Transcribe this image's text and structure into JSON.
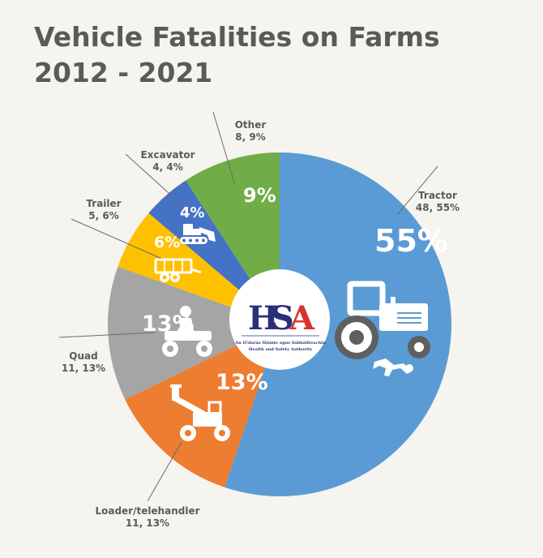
{
  "title_lines": [
    "Vehicle Fatalities on Farms",
    "2012 - 2021"
  ],
  "logo": {
    "text_h": "H",
    "text_s": "S",
    "text_a": "A",
    "line1": "An tÚdarás Sláinte agus Sábháilteachta",
    "line2": "Health and Safety Authority"
  },
  "colors": {
    "tractor": "#5b9bd5",
    "loader": "#ed7d31",
    "quad": "#a5a5a5",
    "trailer": "#ffc000",
    "excavator": "#4472c4",
    "other": "#70ad47",
    "hsa_red": "#d9312b",
    "hsa_blue": "#2a2f7a"
  },
  "icons": [
    "tractor-icon",
    "loader-icon",
    "quad-icon",
    "trailer-icon",
    "excavator-icon"
  ],
  "chart_data": {
    "type": "pie",
    "title": "Vehicle Fatalities on Farms 2012 - 2021",
    "start_angle_deg": 0,
    "direction": "clockwise",
    "slices": [
      {
        "key": "tractor",
        "label": "Tractor",
        "value": 48,
        "percent": 55,
        "sub": "48, 55%",
        "pct_text": "55%"
      },
      {
        "key": "loader",
        "label": "Loader/telehandler",
        "value": 11,
        "percent": 13,
        "sub": "11, 13%",
        "pct_text": "13%"
      },
      {
        "key": "quad",
        "label": "Quad",
        "value": 11,
        "percent": 13,
        "sub": "11, 13%",
        "pct_text": "13%"
      },
      {
        "key": "trailer",
        "label": "Trailer",
        "value": 5,
        "percent": 6,
        "sub": "5, 6%",
        "pct_text": "6%"
      },
      {
        "key": "excavator",
        "label": "Excavator",
        "value": 4,
        "percent": 4,
        "sub": "4, 4%",
        "pct_text": "4%"
      },
      {
        "key": "other",
        "label": "Other",
        "value": 8,
        "percent": 9,
        "sub": "8, 9%",
        "pct_text": "9%"
      }
    ]
  }
}
